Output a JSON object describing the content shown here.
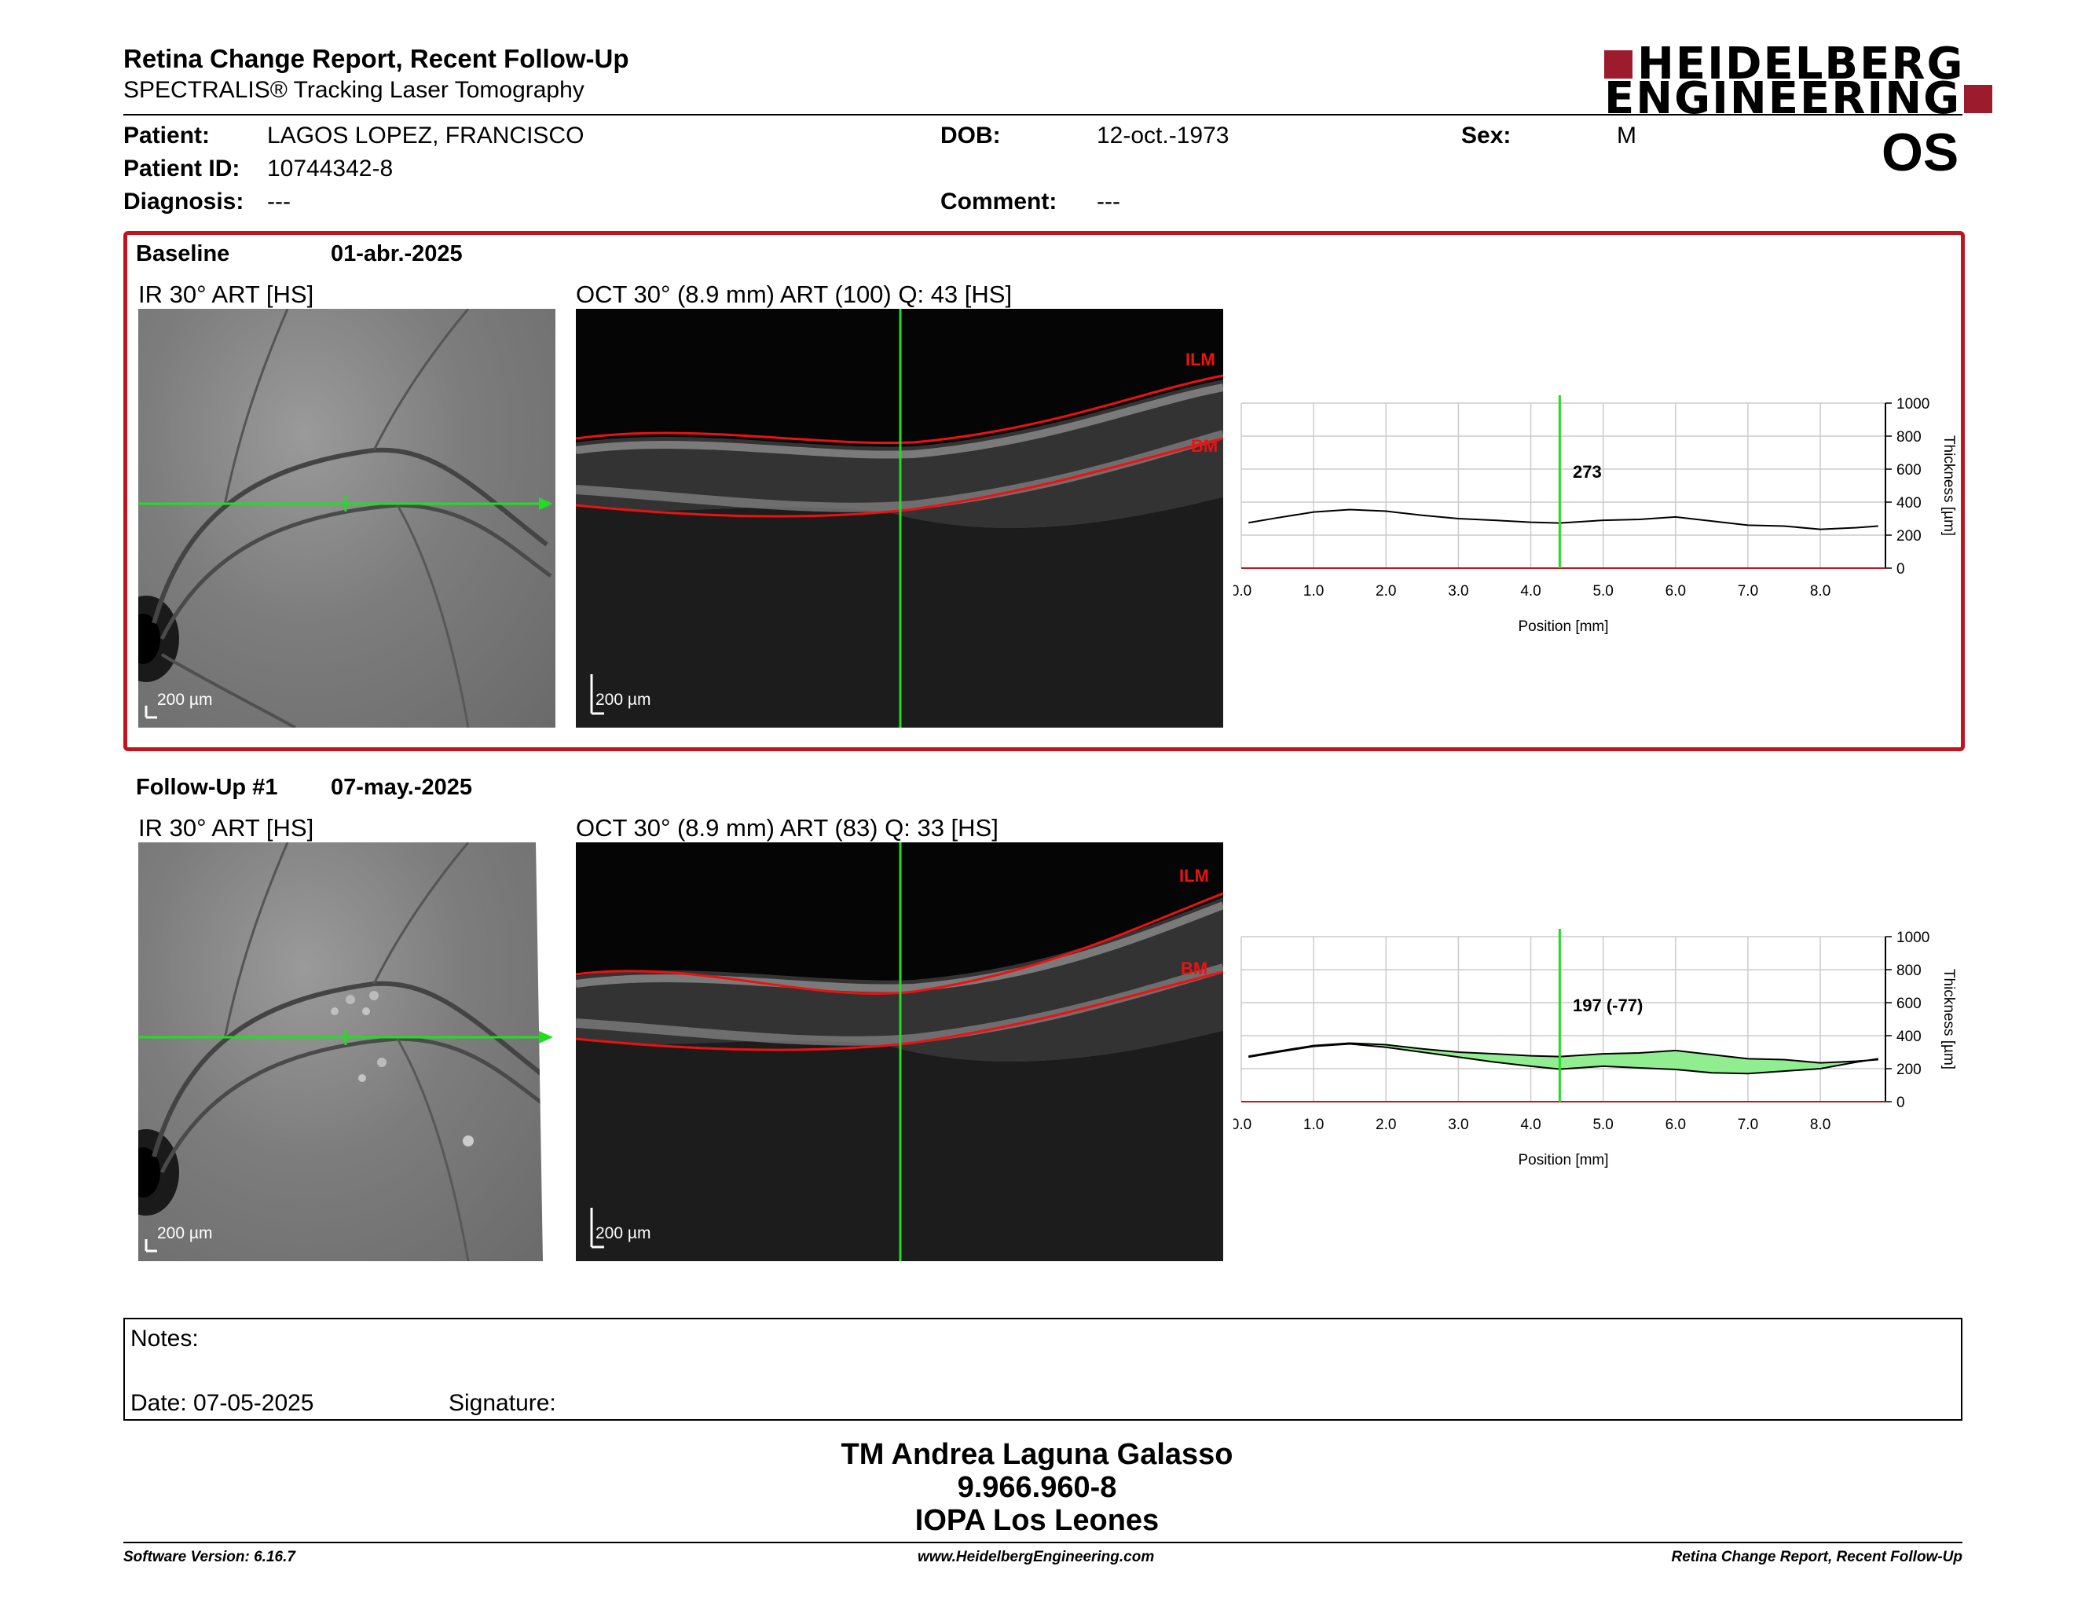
{
  "header": {
    "title": "Retina Change Report, Recent Follow-Up",
    "subtitle": "SPECTRALIS® Tracking Laser Tomography",
    "logo_line1": "HEIDELBERG",
    "logo_line2": "ENGINEERING",
    "eye": "OS"
  },
  "patient": {
    "patient_label": "Patient:",
    "patient_value": "LAGOS LOPEZ, FRANCISCO",
    "patient_id_label": "Patient ID:",
    "patient_id_value": "10744342-8",
    "diagnosis_label": "Diagnosis:",
    "diagnosis_value": "---",
    "dob_label": "DOB:",
    "dob_value": "12-oct.-1973",
    "comment_label": "Comment:",
    "comment_value": "---",
    "sex_label": "Sex:",
    "sex_value": "M"
  },
  "baseline": {
    "label": "Baseline",
    "date": "01-abr.-2025",
    "ir_label": "IR 30° ART [HS]",
    "oct_label": "OCT 30° (8.9 mm) ART (100) Q: 43 [HS]",
    "ir_scale": "200 µm",
    "oct_scale": "200 µm",
    "ilm": "ILM",
    "bm": "BM",
    "cursor_value": "273"
  },
  "followup": {
    "label": "Follow-Up #1",
    "date": "07-may.-2025",
    "ir_label": "IR 30° ART [HS]",
    "oct_label": "OCT 30° (8.9 mm) ART (83) Q: 33 [HS]",
    "ir_scale": "200 µm",
    "oct_scale": "200 µm",
    "ilm": "ILM",
    "bm": "BM",
    "cursor_value": "197 (-77)"
  },
  "chart_data": [
    {
      "type": "line",
      "xlabel": "Position [mm]",
      "ylabel": "Thickness [µm]",
      "xlim": [
        0,
        8.9
      ],
      "ylim": [
        0,
        1000
      ],
      "x_ticks": [
        "0.0",
        "1.0",
        "2.0",
        "3.0",
        "4.0",
        "5.0",
        "6.0",
        "7.0",
        "8.0"
      ],
      "y_ticks": [
        "0",
        "200",
        "400",
        "600",
        "800",
        "1000"
      ],
      "grid": true,
      "cursor_x": 4.4,
      "series": [
        {
          "x": [
            0.1,
            0.5,
            1.0,
            1.5,
            2.0,
            2.5,
            3.0,
            3.5,
            4.0,
            4.4,
            5.0,
            5.5,
            6.0,
            6.5,
            7.0,
            7.5,
            8.0,
            8.5,
            8.8
          ],
          "values": [
            275,
            305,
            340,
            355,
            345,
            320,
            300,
            290,
            278,
            273,
            290,
            295,
            310,
            285,
            260,
            255,
            235,
            245,
            255
          ]
        }
      ]
    },
    {
      "type": "line",
      "xlabel": "Position [mm]",
      "ylabel": "Thickness [µm]",
      "xlim": [
        0,
        8.9
      ],
      "ylim": [
        0,
        1000
      ],
      "x_ticks": [
        "0.0",
        "1.0",
        "2.0",
        "3.0",
        "4.0",
        "5.0",
        "6.0",
        "7.0",
        "8.0"
      ],
      "y_ticks": [
        "0",
        "200",
        "400",
        "600",
        "800",
        "1000"
      ],
      "grid": true,
      "cursor_x": 4.4,
      "series": [
        {
          "x": [
            0.1,
            0.5,
            1.0,
            1.5,
            2.0,
            2.5,
            3.0,
            3.5,
            4.0,
            4.4,
            5.0,
            5.5,
            6.0,
            6.5,
            7.0,
            7.5,
            8.0,
            8.5,
            8.8
          ],
          "values": [
            275,
            305,
            340,
            355,
            345,
            320,
            300,
            290,
            278,
            273,
            290,
            295,
            310,
            285,
            260,
            255,
            235,
            245,
            255
          ]
        },
        {
          "x": [
            0.1,
            0.5,
            1.0,
            1.5,
            2.0,
            2.5,
            3.0,
            3.5,
            4.0,
            4.4,
            5.0,
            5.5,
            6.0,
            6.5,
            7.0,
            7.5,
            8.0,
            8.5,
            8.8
          ],
          "values": [
            270,
            300,
            335,
            350,
            330,
            300,
            270,
            240,
            215,
            197,
            215,
            205,
            195,
            175,
            170,
            185,
            200,
            240,
            260
          ]
        }
      ],
      "fill_color": "#90ee90"
    }
  ],
  "notes": {
    "notes_label": "Notes:",
    "date_label": "Date: 07-05-2025",
    "signature_label": "Signature:"
  },
  "signature": {
    "name": "TM Andrea Laguna Galasso",
    "id": "9.966.960-8",
    "org": "IOPA Los Leones"
  },
  "footer": {
    "version": "Software Version: 6.16.7",
    "website": "www.HeidelbergEngineering.com",
    "report": "Retina Change Report, Recent Follow-Up"
  },
  "colors": {
    "brand": "#9c1b2c",
    "accent_red": "#c0141e",
    "scan_green": "#22dd22",
    "fill_green": "#90ee90"
  }
}
